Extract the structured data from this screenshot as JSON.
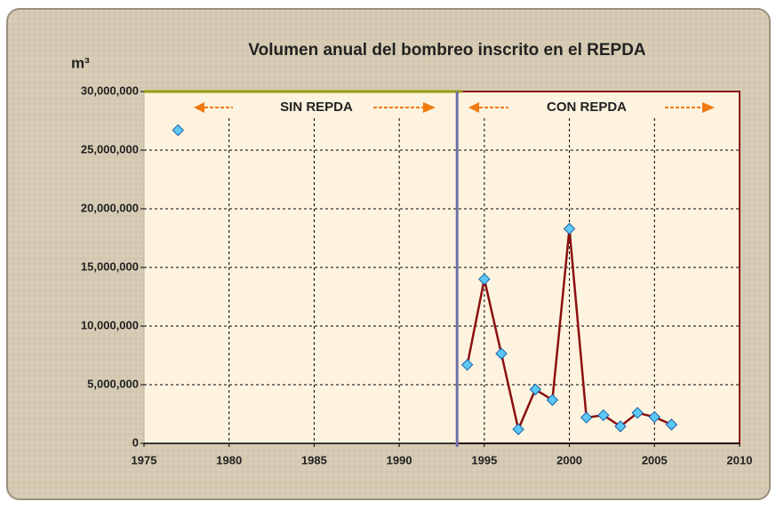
{
  "chart_data": {
    "type": "scatter-line",
    "title": "Volumen anual del bombreo inscrito en el REPDA",
    "y_label": "m³",
    "annotations": [
      "SIN  REPDA",
      "CON  REPDA"
    ],
    "divider_x": 1993.4,
    "series": [
      {
        "color": "#5bc8f5",
        "line": false,
        "x": [
          1977
        ],
        "values": [
          26700000
        ]
      },
      {
        "color": "#5bc8f5",
        "line_color": "#8b1010",
        "line": true,
        "x": [
          1994,
          1995,
          1996,
          1997,
          1998,
          1999,
          2000,
          2001,
          2002,
          2003,
          2004,
          2005,
          2006
        ],
        "values": [
          6700000,
          14000000,
          7650000,
          1200000,
          4600000,
          3700000,
          18300000,
          2200000,
          2400000,
          1450000,
          2600000,
          2250000,
          1600000
        ]
      }
    ],
    "xlim": [
      1975,
      2010
    ],
    "xticks": [
      1975,
      1980,
      1985,
      1990,
      1995,
      2000,
      2005,
      2010
    ],
    "ylim": [
      0,
      30000000
    ],
    "yticks": [
      0,
      {
        "value": 5000000,
        "label": "5,000,000"
      },
      {
        "value": 10000000,
        "label": "10,000,000"
      },
      {
        "value": 15000000,
        "label": "15,000,000"
      },
      {
        "value": 20000000,
        "label": "20,000,000"
      },
      {
        "value": 25000000,
        "label": "25,000,000"
      },
      {
        "value": 30000000,
        "label": "30,000,000"
      }
    ],
    "grid": true
  }
}
